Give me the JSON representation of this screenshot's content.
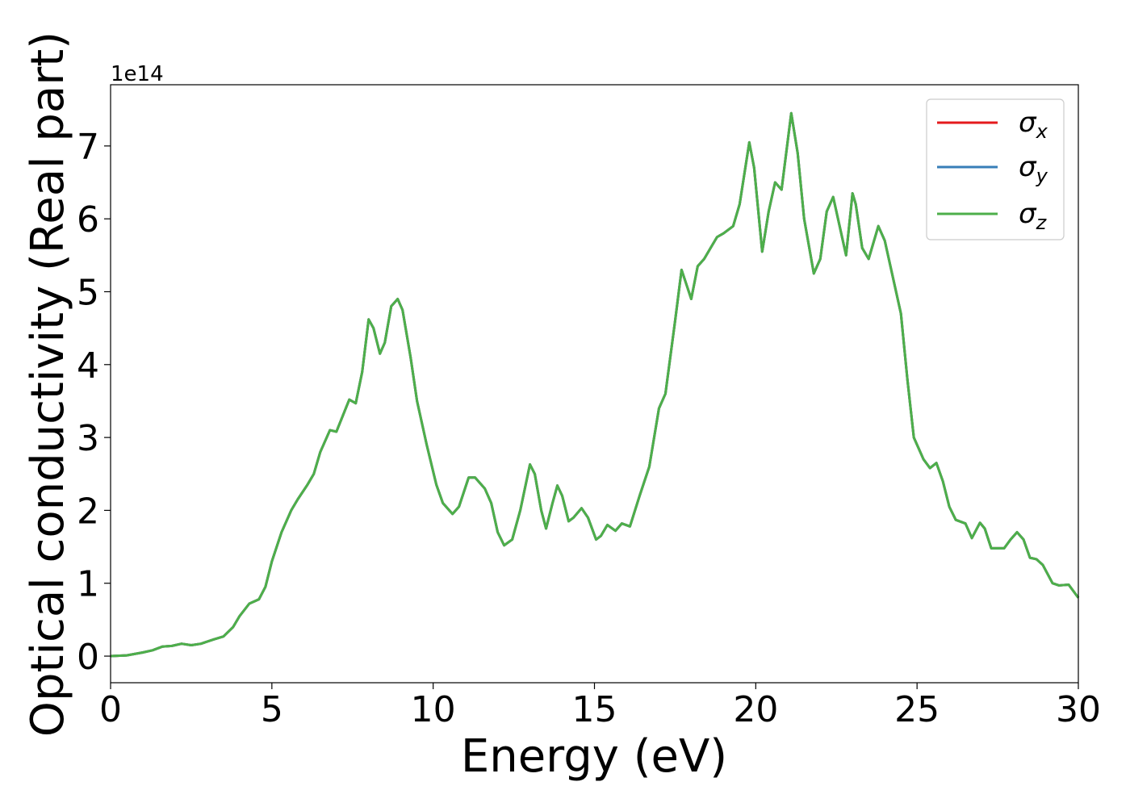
{
  "chart_data": {
    "type": "line",
    "xlabel": "Energy (eV)",
    "ylabel": "Optical conductivity (Real part)",
    "y_offset_label": "1e14",
    "x": [
      0,
      0.5,
      1,
      1.3,
      1.6,
      1.9,
      2.2,
      2.5,
      2.8,
      3.2,
      3.5,
      3.8,
      4.0,
      4.3,
      4.6,
      4.8,
      5.0,
      5.3,
      5.6,
      5.8,
      6.1,
      6.3,
      6.5,
      6.8,
      7.0,
      7.2,
      7.4,
      7.6,
      7.8,
      8.0,
      8.15,
      8.35,
      8.5,
      8.7,
      8.9,
      9.05,
      9.3,
      9.5,
      9.8,
      10.1,
      10.3,
      10.6,
      10.8,
      11.1,
      11.3,
      11.6,
      11.8,
      12.0,
      12.2,
      12.45,
      12.7,
      13.0,
      13.15,
      13.35,
      13.5,
      13.7,
      13.85,
      14.0,
      14.2,
      14.35,
      14.6,
      14.8,
      15.05,
      15.2,
      15.4,
      15.65,
      15.85,
      16.1,
      16.4,
      16.7,
      17.0,
      17.2,
      17.5,
      17.7,
      17.85,
      18.0,
      18.2,
      18.4,
      18.6,
      18.8,
      19.0,
      19.3,
      19.5,
      19.8,
      19.95,
      20.2,
      20.4,
      20.6,
      20.8,
      21.1,
      21.3,
      21.5,
      21.8,
      22.0,
      22.2,
      22.4,
      22.6,
      22.8,
      23.0,
      23.1,
      23.3,
      23.5,
      23.8,
      24.0,
      24.3,
      24.5,
      24.7,
      24.9,
      25.2,
      25.4,
      25.6,
      25.8,
      26.0,
      26.2,
      26.5,
      26.7,
      26.95,
      27.1,
      27.3,
      27.7,
      27.9,
      28.1,
      28.3,
      28.5,
      28.7,
      28.9,
      29.2,
      29.4,
      29.7,
      30
    ],
    "series": [
      {
        "name": "σx",
        "color": "#e41a1c",
        "values": [
          0,
          0.01,
          0.05,
          0.08,
          0.13,
          0.14,
          0.17,
          0.15,
          0.17,
          0.23,
          0.27,
          0.4,
          0.55,
          0.72,
          0.78,
          0.95,
          1.3,
          1.7,
          2.0,
          2.15,
          2.35,
          2.5,
          2.8,
          3.1,
          3.08,
          3.3,
          3.52,
          3.47,
          3.9,
          4.62,
          4.5,
          4.15,
          4.3,
          4.8,
          4.9,
          4.75,
          4.1,
          3.5,
          2.9,
          2.35,
          2.1,
          1.95,
          2.05,
          2.45,
          2.45,
          2.3,
          2.1,
          1.7,
          1.52,
          1.6,
          2.0,
          2.63,
          2.5,
          2.0,
          1.75,
          2.1,
          2.34,
          2.2,
          1.85,
          1.9,
          2.03,
          1.9,
          1.6,
          1.65,
          1.8,
          1.72,
          1.82,
          1.78,
          2.2,
          2.6,
          3.4,
          3.6,
          4.6,
          5.3,
          5.1,
          4.9,
          5.35,
          5.45,
          5.6,
          5.75,
          5.8,
          5.9,
          6.2,
          7.05,
          6.7,
          5.55,
          6.1,
          6.5,
          6.4,
          7.45,
          6.9,
          6.0,
          5.25,
          5.45,
          6.1,
          6.3,
          5.9,
          5.5,
          6.35,
          6.2,
          5.6,
          5.45,
          5.9,
          5.7,
          5.1,
          4.7,
          3.8,
          3.0,
          2.7,
          2.58,
          2.65,
          2.4,
          2.05,
          1.87,
          1.82,
          1.62,
          1.83,
          1.75,
          1.48,
          1.48,
          1.6,
          1.7,
          1.6,
          1.35,
          1.33,
          1.25,
          1.0,
          0.97,
          0.98,
          0.8
        ]
      },
      {
        "name": "σy",
        "color": "#377eb8",
        "values": [
          0,
          0.01,
          0.05,
          0.08,
          0.13,
          0.14,
          0.17,
          0.15,
          0.17,
          0.23,
          0.27,
          0.4,
          0.55,
          0.72,
          0.78,
          0.95,
          1.3,
          1.7,
          2.0,
          2.15,
          2.35,
          2.5,
          2.8,
          3.1,
          3.08,
          3.3,
          3.52,
          3.47,
          3.9,
          4.62,
          4.5,
          4.15,
          4.3,
          4.8,
          4.9,
          4.75,
          4.1,
          3.5,
          2.9,
          2.35,
          2.1,
          1.95,
          2.05,
          2.45,
          2.45,
          2.3,
          2.1,
          1.7,
          1.52,
          1.6,
          2.0,
          2.63,
          2.5,
          2.0,
          1.75,
          2.1,
          2.34,
          2.2,
          1.85,
          1.9,
          2.03,
          1.9,
          1.6,
          1.65,
          1.8,
          1.72,
          1.82,
          1.78,
          2.2,
          2.6,
          3.4,
          3.6,
          4.6,
          5.3,
          5.1,
          4.9,
          5.35,
          5.45,
          5.6,
          5.75,
          5.8,
          5.9,
          6.2,
          7.05,
          6.7,
          5.55,
          6.1,
          6.5,
          6.4,
          7.45,
          6.9,
          6.0,
          5.25,
          5.45,
          6.1,
          6.3,
          5.9,
          5.5,
          6.35,
          6.2,
          5.6,
          5.45,
          5.9,
          5.7,
          5.1,
          4.7,
          3.8,
          3.0,
          2.7,
          2.58,
          2.65,
          2.4,
          2.05,
          1.87,
          1.82,
          1.62,
          1.83,
          1.75,
          1.48,
          1.48,
          1.6,
          1.7,
          1.6,
          1.35,
          1.33,
          1.25,
          1.0,
          0.97,
          0.98,
          0.8
        ]
      },
      {
        "name": "σz",
        "color": "#4daf4a",
        "values": [
          0,
          0.01,
          0.05,
          0.08,
          0.13,
          0.14,
          0.17,
          0.15,
          0.17,
          0.23,
          0.27,
          0.4,
          0.55,
          0.72,
          0.78,
          0.95,
          1.3,
          1.7,
          2.0,
          2.15,
          2.35,
          2.5,
          2.8,
          3.1,
          3.08,
          3.3,
          3.52,
          3.47,
          3.9,
          4.62,
          4.5,
          4.15,
          4.3,
          4.8,
          4.9,
          4.75,
          4.1,
          3.5,
          2.9,
          2.35,
          2.1,
          1.95,
          2.05,
          2.45,
          2.45,
          2.3,
          2.1,
          1.7,
          1.52,
          1.6,
          2.0,
          2.63,
          2.5,
          2.0,
          1.75,
          2.1,
          2.34,
          2.2,
          1.85,
          1.9,
          2.03,
          1.9,
          1.6,
          1.65,
          1.8,
          1.72,
          1.82,
          1.78,
          2.2,
          2.6,
          3.4,
          3.6,
          4.6,
          5.3,
          5.1,
          4.9,
          5.35,
          5.45,
          5.6,
          5.75,
          5.8,
          5.9,
          6.2,
          7.05,
          6.7,
          5.55,
          6.1,
          6.5,
          6.4,
          7.45,
          6.9,
          6.0,
          5.25,
          5.45,
          6.1,
          6.3,
          5.9,
          5.5,
          6.35,
          6.2,
          5.6,
          5.45,
          5.9,
          5.7,
          5.1,
          4.7,
          3.8,
          3.0,
          2.7,
          2.58,
          2.65,
          2.4,
          2.05,
          1.87,
          1.82,
          1.62,
          1.83,
          1.75,
          1.48,
          1.48,
          1.6,
          1.7,
          1.6,
          1.35,
          1.33,
          1.25,
          1.0,
          0.97,
          0.98,
          0.8
        ]
      }
    ],
    "xlim": [
      0,
      30
    ],
    "xticks": [
      0,
      5,
      10,
      15,
      20,
      25,
      30
    ],
    "ylim": [
      -0.365,
      7.84
    ],
    "yticks": [
      0,
      1,
      2,
      3,
      4,
      5,
      6,
      7
    ],
    "grid": false,
    "legend": "upper right"
  }
}
